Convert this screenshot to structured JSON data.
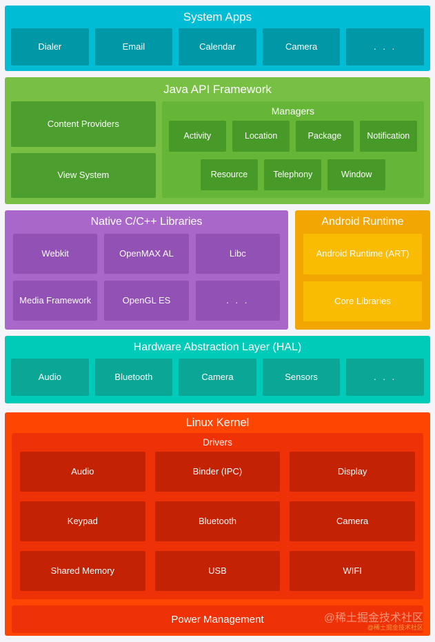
{
  "system_apps": {
    "title": "System Apps",
    "items": [
      "Dialer",
      "Email",
      "Calendar",
      "Camera",
      ". . ."
    ]
  },
  "java_api": {
    "title": "Java API Framework",
    "left_items": [
      "Content Providers",
      "View System"
    ],
    "managers": {
      "title": "Managers",
      "row1": [
        "Activity",
        "Location",
        "Package",
        "Notification"
      ],
      "row2": [
        "Resource",
        "Telephony",
        "Window"
      ]
    }
  },
  "native_libs": {
    "title": "Native C/C++ Libraries",
    "items": [
      "Webkit",
      "OpenMAX AL",
      "Libc",
      "Media Framework",
      "OpenGL ES",
      ". . ."
    ]
  },
  "android_runtime": {
    "title": "Android Runtime",
    "items": [
      "Android Runtime (ART)",
      "Core Libraries"
    ]
  },
  "hal": {
    "title": "Hardware Abstraction Layer (HAL)",
    "items": [
      "Audio",
      "Bluetooth",
      "Camera",
      "Sensors",
      ". . ."
    ]
  },
  "linux_kernel": {
    "title": "Linux Kernel",
    "drivers": {
      "title": "Drivers",
      "items": [
        "Audio",
        "Binder (IPC)",
        "Display",
        "Keypad",
        "Bluetooth",
        "Camera",
        "Shared Memory",
        "USB",
        "WIFI"
      ]
    },
    "power_label": "Power Management"
  },
  "watermark": {
    "large": "@稀土掘金技术社区",
    "small": "@稀土掘金技术社区"
  },
  "colors": {
    "page_bg": "#f5f4f8",
    "system_apps_bg": "#00bcd4",
    "system_apps_box": "#0098a6",
    "java_bg": "#77c043",
    "java_box": "#4c9f2e",
    "managers_bg": "#65b636",
    "managers_box": "#479a28",
    "native_bg": "#a967c9",
    "native_box": "#9151b5",
    "runtime_bg": "#f2a602",
    "runtime_box": "#fabb03",
    "hal_bg": "#00cbb8",
    "hal_box": "#0aa796",
    "kernel_bg": "#fe4502",
    "kernel_sub_bg": "#ee3106",
    "kernel_box": "#c32205"
  }
}
